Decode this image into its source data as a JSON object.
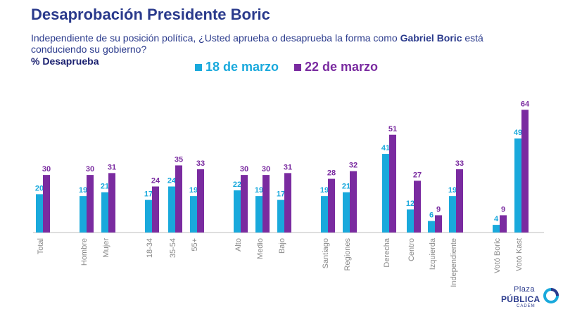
{
  "title": "Desaprobación Presidente Boric",
  "subtitle_pre": "Independiente de su posición política, ¿Usted aprueba o desaprueba la forma como ",
  "subtitle_bold": "Gabriel Boric",
  "subtitle_post": " está conduciendo su gobierno?",
  "measure_label": "% Desaprueba",
  "logo": {
    "line1": "Plaza",
    "line2": "PÚBLICA",
    "line3": "CADEM"
  },
  "colors": {
    "series1": "#19a9dc",
    "series2": "#7a2ba0",
    "title": "#2a3a8c",
    "axis_text": "#8a8a8a"
  },
  "chart_data": {
    "type": "bar",
    "title": "Desaprobación Presidente Boric",
    "ylabel": "% Desaprueba",
    "xlabel": "",
    "ylim": [
      0,
      70
    ],
    "categories": [
      "Total",
      "Hombre",
      "Mujer",
      "18-34",
      "35-54",
      "55+",
      "Alto",
      "Medio",
      "Bajo",
      "Santiago",
      "Regiones",
      "Derecha",
      "Centro",
      "Izquierda",
      "Independiente",
      "Votó Boric",
      "Votó Kast"
    ],
    "series": [
      {
        "name": "18 de marzo",
        "values": [
          20,
          19,
          21,
          17,
          24,
          19,
          22,
          19,
          17,
          19,
          21,
          41,
          12,
          6,
          19,
          4,
          49
        ]
      },
      {
        "name": "22 de marzo",
        "values": [
          30,
          30,
          31,
          24,
          35,
          33,
          30,
          30,
          31,
          28,
          32,
          51,
          27,
          9,
          33,
          9,
          64
        ]
      }
    ],
    "legend_position": "top",
    "grid": false
  }
}
